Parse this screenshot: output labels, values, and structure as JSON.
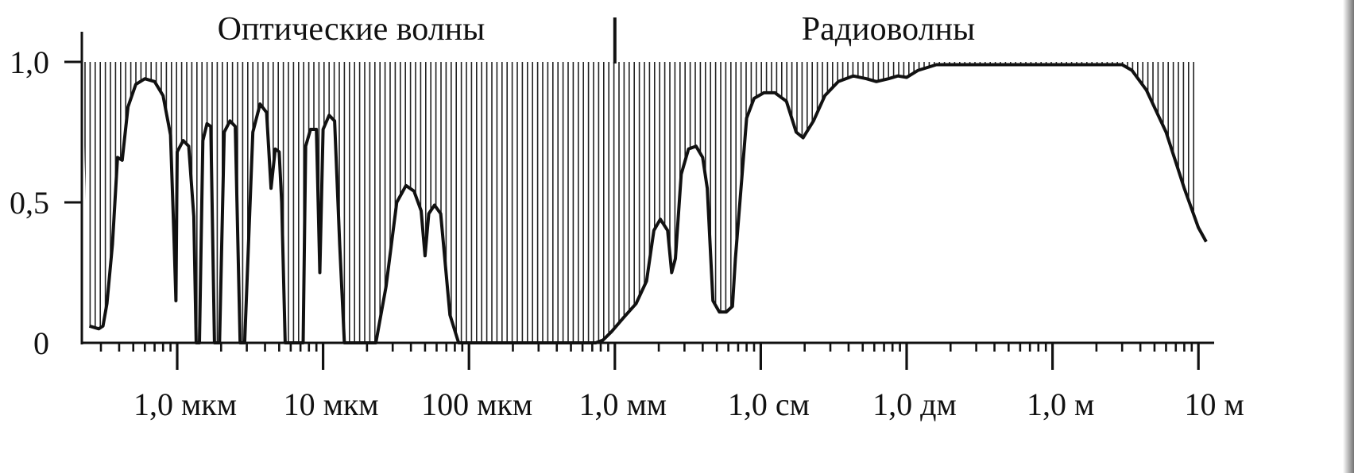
{
  "chart_data": {
    "type": "area",
    "title": "",
    "xlabel": "",
    "ylabel": "",
    "xscale": "log",
    "x_unit": "m",
    "xlim": [
      2.5e-07,
      12
    ],
    "ylim": [
      0,
      1.0
    ],
    "grid": false,
    "y_ticks": [
      {
        "value": 0,
        "label": "0"
      },
      {
        "value": 0.5,
        "label": "0,5"
      },
      {
        "value": 1.0,
        "label": "1,0"
      }
    ],
    "x_ticks": [
      {
        "value": 1e-06,
        "label": "1,0  мкм"
      },
      {
        "value": 1e-05,
        "label": "10  мкм"
      },
      {
        "value": 0.0001,
        "label": "100  мкм"
      },
      {
        "value": 0.001,
        "label": "1,0  мм"
      },
      {
        "value": 0.01,
        "label": "1,0  см"
      },
      {
        "value": 0.1,
        "label": "1,0  дм"
      },
      {
        "value": 1,
        "label": "1,0  м"
      },
      {
        "value": 10,
        "label": "10  м"
      }
    ],
    "regions": [
      {
        "label": "Оптические волны",
        "from": 2.5e-07,
        "to": 0.001
      },
      {
        "label": "Радиоволны",
        "from": 0.001,
        "to": 12
      }
    ],
    "divider_at": 0.001,
    "series": [
      {
        "points": [
          [
            2.5e-07,
            0.06
          ],
          [
            2.9e-07,
            0.05
          ],
          [
            3.1e-07,
            0.06
          ],
          [
            3.3e-07,
            0.14
          ],
          [
            3.6e-07,
            0.35
          ],
          [
            3.9e-07,
            0.66
          ],
          [
            4.2e-07,
            0.65
          ],
          [
            4.6e-07,
            0.84
          ],
          [
            5.2e-07,
            0.92
          ],
          [
            6e-07,
            0.94
          ],
          [
            7e-07,
            0.93
          ],
          [
            8e-07,
            0.88
          ],
          [
            9e-07,
            0.74
          ],
          [
            9.5e-07,
            0.38
          ],
          [
            9.8e-07,
            0.15
          ],
          [
            1e-06,
            0.68
          ],
          [
            1.1e-06,
            0.72
          ],
          [
            1.2e-06,
            0.7
          ],
          [
            1.3e-06,
            0.45
          ],
          [
            1.35e-06,
            0.0
          ],
          [
            1.42e-06,
            0.0
          ],
          [
            1.5e-06,
            0.72
          ],
          [
            1.6e-06,
            0.78
          ],
          [
            1.7e-06,
            0.77
          ],
          [
            1.8e-06,
            0.0
          ],
          [
            1.95e-06,
            0.0
          ],
          [
            2.1e-06,
            0.75
          ],
          [
            2.3e-06,
            0.79
          ],
          [
            2.5e-06,
            0.77
          ],
          [
            2.7e-06,
            0.0
          ],
          [
            2.9e-06,
            0.0
          ],
          [
            3.3e-06,
            0.75
          ],
          [
            3.7e-06,
            0.85
          ],
          [
            4.1e-06,
            0.82
          ],
          [
            4.4e-06,
            0.55
          ],
          [
            4.7e-06,
            0.69
          ],
          [
            5e-06,
            0.68
          ],
          [
            5.2e-06,
            0.5
          ],
          [
            5.5e-06,
            0.0
          ],
          [
            7.3e-06,
            0.0
          ],
          [
            7.6e-06,
            0.7
          ],
          [
            8.2e-06,
            0.76
          ],
          [
            9e-06,
            0.76
          ],
          [
            9.5e-06,
            0.25
          ],
          [
            1e-05,
            0.76
          ],
          [
            1.1e-05,
            0.81
          ],
          [
            1.2e-05,
            0.79
          ],
          [
            1.3e-05,
            0.35
          ],
          [
            1.4e-05,
            0.0
          ],
          [
            2.3e-05,
            0.0
          ],
          [
            2.7e-05,
            0.2
          ],
          [
            3.2e-05,
            0.5
          ],
          [
            3.7e-05,
            0.56
          ],
          [
            4.2e-05,
            0.54
          ],
          [
            4.7e-05,
            0.47
          ],
          [
            5e-05,
            0.31
          ],
          [
            5.3e-05,
            0.46
          ],
          [
            5.8e-05,
            0.49
          ],
          [
            6.4e-05,
            0.46
          ],
          [
            7.4e-05,
            0.1
          ],
          [
            8.5e-05,
            0.0
          ],
          [
            0.00074,
            0.0
          ],
          [
            0.00083,
            0.01
          ],
          [
            0.00095,
            0.04
          ],
          [
            0.00115,
            0.09
          ],
          [
            0.0014,
            0.14
          ],
          [
            0.00165,
            0.22
          ],
          [
            0.00185,
            0.4
          ],
          [
            0.00205,
            0.44
          ],
          [
            0.0023,
            0.4
          ],
          [
            0.00245,
            0.25
          ],
          [
            0.0026,
            0.3
          ],
          [
            0.00285,
            0.6
          ],
          [
            0.0032,
            0.69
          ],
          [
            0.0036,
            0.7
          ],
          [
            0.004,
            0.66
          ],
          [
            0.0043,
            0.55
          ],
          [
            0.0047,
            0.15
          ],
          [
            0.0052,
            0.11
          ],
          [
            0.0058,
            0.11
          ],
          [
            0.0064,
            0.13
          ],
          [
            0.0067,
            0.3
          ],
          [
            0.0074,
            0.58
          ],
          [
            0.008,
            0.8
          ],
          [
            0.009,
            0.87
          ],
          [
            0.0105,
            0.89
          ],
          [
            0.0125,
            0.89
          ],
          [
            0.015,
            0.86
          ],
          [
            0.0175,
            0.75
          ],
          [
            0.0195,
            0.73
          ],
          [
            0.023,
            0.79
          ],
          [
            0.0275,
            0.88
          ],
          [
            0.034,
            0.93
          ],
          [
            0.043,
            0.95
          ],
          [
            0.053,
            0.94
          ],
          [
            0.062,
            0.93
          ],
          [
            0.075,
            0.94
          ],
          [
            0.087,
            0.95
          ],
          [
            0.1,
            0.945
          ],
          [
            0.12,
            0.97
          ],
          [
            0.16,
            0.99
          ],
          [
            0.3,
            0.99
          ],
          [
            1,
            0.99
          ],
          [
            3,
            0.99
          ],
          [
            3.5,
            0.97
          ],
          [
            4.4,
            0.9
          ],
          [
            6,
            0.75
          ],
          [
            8,
            0.55
          ],
          [
            10,
            0.41
          ],
          [
            12,
            0.36
          ]
        ]
      }
    ]
  }
}
